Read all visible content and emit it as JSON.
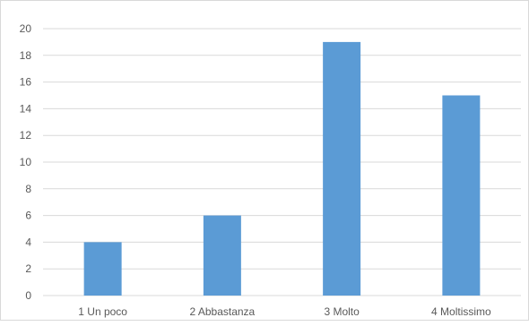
{
  "chart_data": {
    "type": "bar",
    "title": "",
    "xlabel": "",
    "ylabel": "",
    "categories": [
      "1 Un poco",
      "2 Abbastanza",
      "3 Molto",
      "4 Moltissimo"
    ],
    "values": [
      4,
      6,
      19,
      15
    ],
    "ylim": [
      0,
      20
    ],
    "yticks": [
      0,
      2,
      4,
      6,
      8,
      10,
      12,
      14,
      16,
      18,
      20
    ],
    "grid": true,
    "legend": "none",
    "colors": {
      "bar": "#5b9bd5",
      "grid": "#d9d9d9",
      "text": "#595959"
    }
  }
}
